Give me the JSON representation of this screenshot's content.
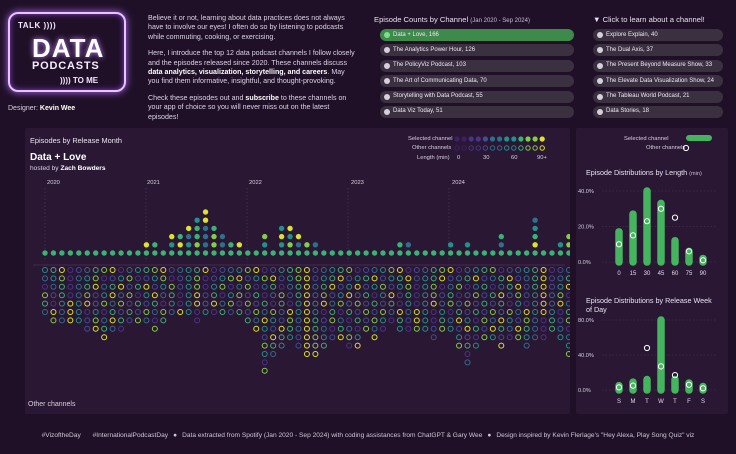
{
  "logo": {
    "talk": "TALK ))))",
    "data": "DATA",
    "podcasts": "PODCASTS",
    "tome": ")))) TO ME"
  },
  "designer": {
    "label": "Designer: ",
    "name": "Kevin Wee"
  },
  "intro": {
    "p1": "Believe it or not, learning about data practices does not always have to involve our eyes! I often do so by listening to podcasts while commuting, cooking, or exercising.",
    "p2a": "Here, I introduce the top 12 data podcast channels I follow closely and the episodes released since 2020. These channels discuss ",
    "p2b": "data analytics, visualization, storytelling, and careers",
    "p2c": ". May you find them informative, insightful, and thought-provoking.",
    "p3a": "Check these episodes out and ",
    "p3b": "subscribe",
    "p3c": " to these channels on your app of choice so you will never miss out on the latest episodes!"
  },
  "channel_picker": {
    "title": "Episode Counts by Channel",
    "subtitle": "(Jan 2020 - Sep 2024)",
    "hint": "▼ Click to learn about a channel!",
    "selected_color": "#3d8a4a",
    "col1": [
      {
        "label": "Data + Love, 166",
        "selected": true
      },
      {
        "label": "The Analytics Power Hour, 126",
        "selected": false
      },
      {
        "label": "The PolicyViz Podcast, 103",
        "selected": false
      },
      {
        "label": "The Art of Communicating Data, 70",
        "selected": false
      },
      {
        "label": "Storytelling with Data Podcast, 55",
        "selected": false
      },
      {
        "label": "Data Viz Today, 51",
        "selected": false
      }
    ],
    "col2": [
      {
        "label": "Explore Explain, 40",
        "selected": false
      },
      {
        "label": "The Dual Axis, 37",
        "selected": false
      },
      {
        "label": "The Present Beyond Measure Show, 33",
        "selected": false
      },
      {
        "label": "The Elevate Data Visualization Show, 24",
        "selected": false
      },
      {
        "label": "The Tableau World Podcast, 21",
        "selected": false
      },
      {
        "label": "Data Stories, 18",
        "selected": false
      }
    ]
  },
  "main_chart": {
    "section_title": "Episodes by Release Month",
    "channel_title": "Data + Love",
    "host_prefix": "hosted by ",
    "host": "Zach Bowders",
    "other_label": "Other channels",
    "legend": {
      "selected": "Selected channel",
      "other": "Other channels",
      "length": "Length (min)",
      "length_ticks": [
        "0",
        "30",
        "60",
        "90+"
      ]
    },
    "years": [
      "2020",
      "2021",
      "2022",
      "2023",
      "2024"
    ],
    "palette": [
      "#3e1f63",
      "#4a3489",
      "#3f4f95",
      "#2f6f8e",
      "#22918a",
      "#3ab274",
      "#82ce45",
      "#dde32b"
    ]
  },
  "chart_data": [
    {
      "type": "scatter",
      "title": "Episode Distributions by Length",
      "unit": "(min)",
      "categories": [
        "0",
        "15",
        "30",
        "45",
        "60",
        "75",
        "90"
      ],
      "series": [
        {
          "name": "Selected channel",
          "values": [
            17.0,
            27.0,
            40.0,
            33.0,
            12.0,
            6.0,
            2.0
          ]
        },
        {
          "name": "Other channels",
          "values": [
            10.0,
            15.0,
            23.0,
            30.0,
            25.0,
            6.0,
            1.0
          ]
        }
      ],
      "y_ticks": [
        "40.0%",
        "20.0%",
        "0.0%"
      ],
      "ylim": [
        0,
        40
      ]
    },
    {
      "type": "scatter",
      "title": "Episode Distributions by Release Week of Day",
      "categories": [
        "S",
        "M",
        "T",
        "W",
        "T",
        "F",
        "S"
      ],
      "series": [
        {
          "name": "Selected channel",
          "values": [
            5.0,
            9.0,
            12.0,
            80.0,
            12.0,
            8.0,
            4.0
          ]
        },
        {
          "name": "Other channels",
          "values": [
            3.0,
            5.0,
            48.0,
            27.0,
            17.0,
            6.0,
            2.0
          ]
        }
      ],
      "y_ticks": [
        "80.0%",
        "40.0%",
        "0.0%"
      ],
      "ylim": [
        0,
        80
      ],
      "legend": {
        "selected": "Selected channel",
        "other": "Other channels"
      }
    }
  ],
  "footer": {
    "t1": "#VizoftheDay",
    "t2": "#InternationalPodcastDay",
    "t3": "Data extracted from Spotify (Jan 2020 - Sep 2024) with coding assistances from ChatGPT & Gary Wee",
    "t4": "Design inspired by Kevin Flerlage's \"Hey Alexa, Play Song Quiz\" viz"
  }
}
